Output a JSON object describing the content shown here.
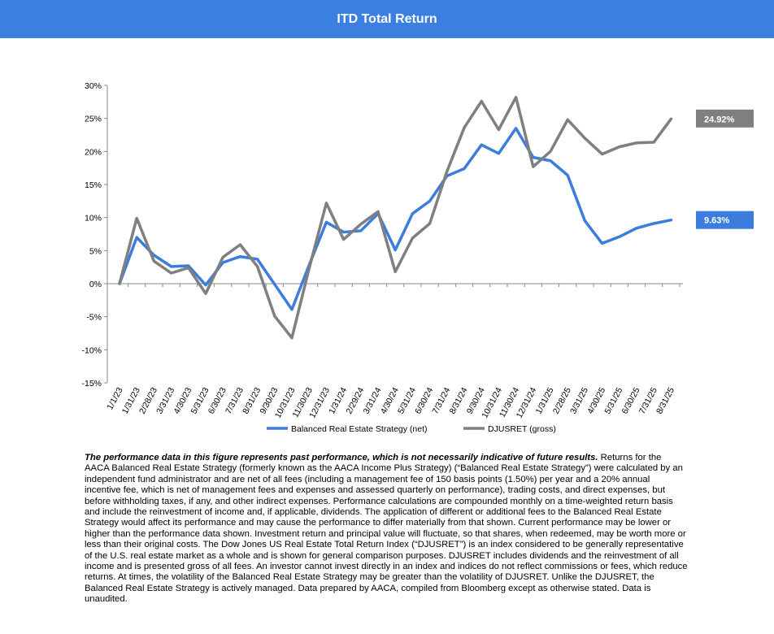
{
  "header": {
    "title": "ITD Total Return"
  },
  "chart_data": {
    "type": "line",
    "x": [
      "1/1/23",
      "1/31/23",
      "2/28/23",
      "3/31/23",
      "4/30/23",
      "5/31/23",
      "6/30/23",
      "7/31/23",
      "8/31/23",
      "9/30/23",
      "10/31/23",
      "11/30/23",
      "12/31/23",
      "1/31/24",
      "2/29/24",
      "3/31/24",
      "4/30/24",
      "5/31/24",
      "6/30/24",
      "7/31/24",
      "8/31/24",
      "9/30/24",
      "10/31/24",
      "11/30/24",
      "12/31/24",
      "1/31/25",
      "2/28/25",
      "3/31/25",
      "4/30/25",
      "5/31/25",
      "6/30/25",
      "7/31/25",
      "8/31/25"
    ],
    "yticks": [
      "30%",
      "25%",
      "20%",
      "15%",
      "10%",
      "5%",
      "0%",
      "-5%",
      "-10%",
      "-15%"
    ],
    "ylim": [
      -15,
      30
    ],
    "series": [
      {
        "name": "Balanced Real Estate Strategy (net)",
        "color": "#3b7ddd",
        "values": [
          0,
          7.0,
          4.3,
          2.6,
          2.7,
          -0.2,
          3.2,
          4.1,
          3.7,
          -0.1,
          -3.9,
          2.8,
          9.3,
          7.8,
          8.0,
          10.6,
          5.1,
          10.6,
          12.5,
          16.3,
          17.4,
          21.0,
          19.7,
          23.5,
          19.1,
          18.6,
          16.4,
          9.5,
          6.1,
          7.1,
          8.4,
          9.1,
          9.63
        ]
      },
      {
        "name": "DJUSRET (gross)",
        "color": "#7f7f7f",
        "values": [
          0,
          9.9,
          3.4,
          1.6,
          2.4,
          -1.5,
          4.0,
          5.9,
          2.6,
          -4.9,
          -8.2,
          2.3,
          12.2,
          6.7,
          9.0,
          10.9,
          1.8,
          6.9,
          9.1,
          17.0,
          23.6,
          27.6,
          23.3,
          28.2,
          17.7,
          20.0,
          24.8,
          22.0,
          19.6,
          20.7,
          21.3,
          21.4,
          24.92
        ]
      }
    ],
    "end_labels": [
      "9.63%",
      "24.92%"
    ]
  },
  "disclaimer": {
    "lead": "The performance data in this figure represents past performance, which is not necessarily indicative of future results.",
    "body": " Returns for the AACA Balanced Real Estate Strategy (formerly known as the AACA Income Plus Strategy) (“Balanced Real Estate Strategy”) were calculated by an independent fund administrator and are net of all fees (including a management fee of 150 basis points (1.50%) per year and a 20% annual incentive fee, which is net of management fees and expenses and assessed quarterly on performance), trading costs, and direct expenses, but before withholding taxes, if any, and other indirect expenses. Performance calculations are compounded monthly on a time-weighted return basis and include the reinvestment of income and, if applicable, dividends. The application of different or additional fees to the Balanced Real Estate Strategy would affect its performance and may cause the performance to differ materially from that shown. Current performance may be lower or higher than the performance data shown. Investment return and principal value will fluctuate, so that shares, when redeemed, may be worth more or less than their original costs. The Dow Jones US Real Estate Total Return Index (“DJUSRET”) is an index considered to be generally representative of the U.S. real estate market as a whole and is shown for general comparison purposes. DJUSRET includes dividends and the reinvestment of all income and is presented gross of all fees. An investor cannot invest directly in an index and indices do not reflect commissions or fees, which reduce returns. At times, the volatility of the Balanced Real Estate Strategy may be greater than the volatility of DJUSRET. Unlike the DJUSRET, the Balanced Real Estate Strategy is actively managed. Data prepared by AACA, compiled from Bloomberg except as otherwise stated. Data is unaudited."
  }
}
